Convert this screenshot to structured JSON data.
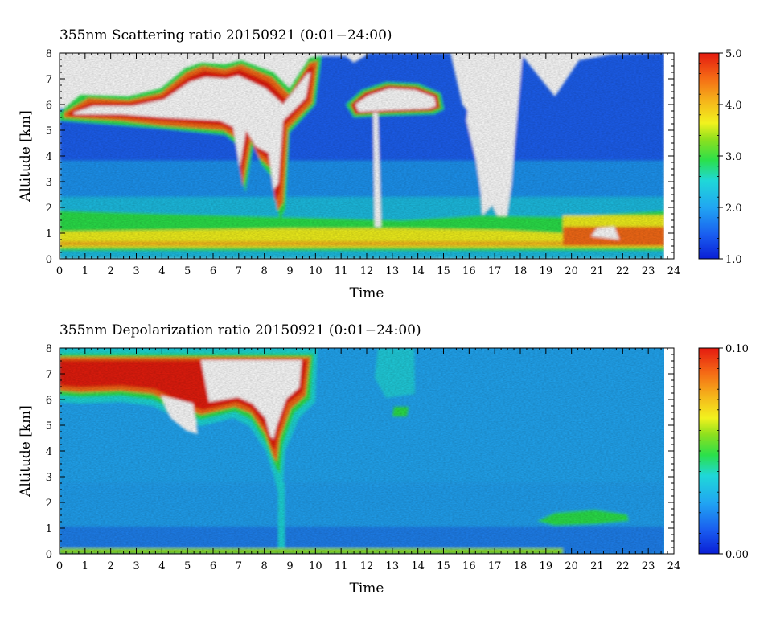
{
  "chart_data": [
    {
      "type": "heatmap",
      "title": "355nm Scattering ratio  20150921 (0:01−24:00)",
      "xlabel": "Time",
      "ylabel": "Altitude [km]",
      "xlim": [
        0,
        24
      ],
      "ylim": [
        0,
        8
      ],
      "xticks": [
        "0",
        "1",
        "2",
        "3",
        "4",
        "5",
        "6",
        "7",
        "8",
        "9",
        "10",
        "11",
        "12",
        "13",
        "14",
        "15",
        "16",
        "17",
        "18",
        "19",
        "20",
        "21",
        "22",
        "23",
        "24"
      ],
      "yticks": [
        "0",
        "1",
        "2",
        "3",
        "4",
        "5",
        "6",
        "7",
        "8"
      ],
      "colorbar": {
        "min": 1.0,
        "max": 5.0,
        "ticks": [
          "1.0",
          "2.0",
          "3.0",
          "4.0",
          "5.0"
        ],
        "tick_values": [
          1.0,
          2.0,
          3.0,
          4.0,
          5.0
        ]
      },
      "data_end_hour": 23.6,
      "features": [
        {
          "kind": "boundary_layer",
          "x": [
            0,
            19.6
          ],
          "y_bottom": 0.4,
          "y_top": 1.7,
          "value": 3.0
        },
        {
          "kind": "boundary_layer",
          "x": [
            19.6,
            23.6
          ],
          "y_bottom": 0.5,
          "y_top": 1.5,
          "value": 4.5
        },
        {
          "kind": "cloud",
          "x": [
            0,
            10
          ],
          "y_bottom": 5.5,
          "y_top": 6.5,
          "value": 5.0
        },
        {
          "kind": "cloud",
          "x": [
            11.5,
            15.0
          ],
          "y_bottom": 5.6,
          "y_top": 6.3,
          "value": 5.0
        },
        {
          "kind": "cloud",
          "x": [
            20.8,
            22.0
          ],
          "y_bottom": 0.5,
          "y_top": 0.95,
          "value": 5.0
        },
        {
          "kind": "no_data",
          "x": [
            16.2,
            17.6
          ],
          "y_bottom": 1.5,
          "y_top": 8.0
        }
      ]
    },
    {
      "type": "heatmap",
      "title": "355nm Depolarization ratio  20150921 (0:01−24:00)",
      "xlabel": "Time",
      "ylabel": "Altitude [km]",
      "xlim": [
        0,
        24
      ],
      "ylim": [
        0,
        8
      ],
      "xticks": [
        "0",
        "1",
        "2",
        "3",
        "4",
        "5",
        "6",
        "7",
        "8",
        "9",
        "10",
        "11",
        "12",
        "13",
        "14",
        "15",
        "16",
        "17",
        "18",
        "19",
        "20",
        "21",
        "22",
        "23",
        "24"
      ],
      "yticks": [
        "0",
        "1",
        "2",
        "3",
        "4",
        "5",
        "6",
        "7",
        "8"
      ],
      "colorbar": {
        "min": 0.0,
        "max": 0.1,
        "ticks": [
          "0.00",
          "0.10"
        ],
        "tick_values": [
          0.0,
          0.1
        ]
      },
      "data_end_hour": 23.6,
      "features": [
        {
          "kind": "background",
          "x": [
            0,
            23.6
          ],
          "y_bottom": 0,
          "y_top": 8,
          "value": 0.03
        },
        {
          "kind": "near_surface_layer",
          "x": [
            0,
            19.5
          ],
          "y_bottom": 0,
          "y_top": 0.2,
          "value": 0.05
        },
        {
          "kind": "ice_cloud",
          "x": [
            0,
            10
          ],
          "y_bottom": 5.0,
          "y_top": 8.0,
          "value": 0.1
        },
        {
          "kind": "aerosol_layer",
          "x": [
            18.5,
            22.0
          ],
          "y_bottom": 1.2,
          "y_top": 1.7,
          "value": 0.045
        }
      ]
    }
  ],
  "colors": {
    "scale": [
      "#0a1fd6",
      "#1a5ff0",
      "#21a6f2",
      "#1fd8d8",
      "#2be04a",
      "#8ee01e",
      "#f2f21e",
      "#f5b91b",
      "#f56a15",
      "#e41a10"
    ],
    "no_data": "#ffffff",
    "axis": "#000000"
  }
}
